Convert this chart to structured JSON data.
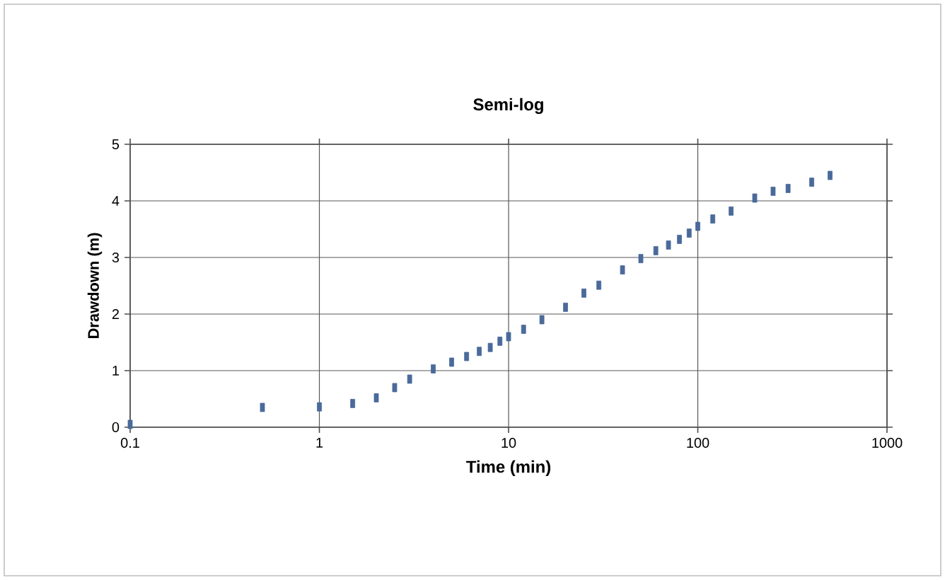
{
  "chart_data": {
    "type": "scatter",
    "title": "Semi-log",
    "xlabel": "Time (min)",
    "ylabel": "Drawdown (m)",
    "log": "x",
    "grid": true,
    "marker": "square",
    "xlim": [
      0.1,
      1000
    ],
    "xticks": [
      0.1,
      1,
      10,
      100,
      1000
    ],
    "ylim": [
      0,
      5
    ],
    "yticks": [
      0,
      1,
      2,
      3,
      4,
      5
    ],
    "series": [
      {
        "color": "#4a6a9a",
        "x": [
          0.1,
          0.5,
          1,
          1.5,
          2,
          2.5,
          3,
          4,
          5,
          6,
          7,
          8,
          9,
          10,
          12,
          15,
          20,
          25,
          30,
          40,
          50,
          60,
          70,
          80,
          90,
          100,
          120,
          150,
          200,
          250,
          300,
          400,
          500
        ],
        "values": [
          0.05,
          0.35,
          0.36,
          0.42,
          0.52,
          0.7,
          0.85,
          1.03,
          1.15,
          1.25,
          1.34,
          1.41,
          1.52,
          1.6,
          1.73,
          1.9,
          2.12,
          2.37,
          2.51,
          2.78,
          2.98,
          3.12,
          3.22,
          3.32,
          3.43,
          3.55,
          3.68,
          3.82,
          4.05,
          4.17,
          4.22,
          4.33,
          4.45
        ]
      }
    ]
  }
}
